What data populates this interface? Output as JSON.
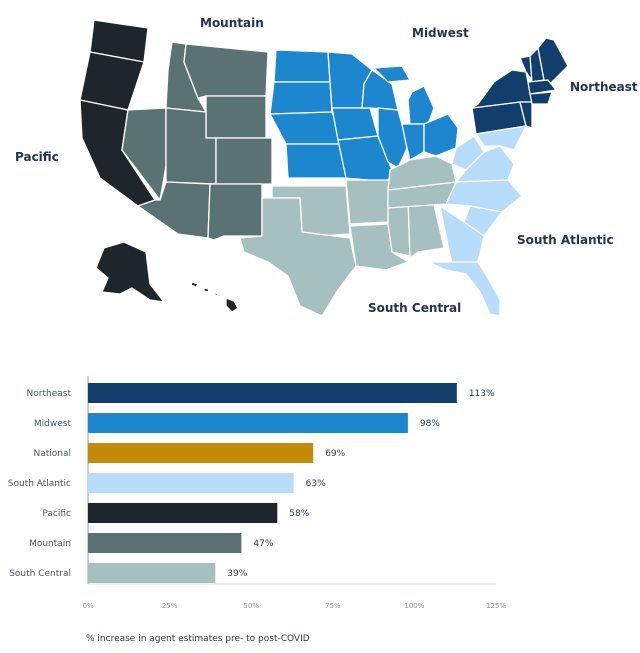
{
  "map": {
    "regions": [
      {
        "name": "Pacific",
        "color": "#1f262b"
      },
      {
        "name": "Mountain",
        "color": "#5a7372"
      },
      {
        "name": "Midwest",
        "color": "#1c86cf"
      },
      {
        "name": "Northeast",
        "color": "#123e6c"
      },
      {
        "name": "South Atlantic",
        "color": "#b8ddfa"
      },
      {
        "name": "South Central",
        "color": "#a5c0be"
      }
    ]
  },
  "chart_data": {
    "type": "bar",
    "orientation": "horizontal",
    "categories": [
      "Northeast",
      "Midwest",
      "National",
      "South Atlantic",
      "Pacific",
      "Mountain",
      "South Central"
    ],
    "values": [
      113,
      98,
      69,
      63,
      58,
      47,
      39
    ],
    "value_labels": [
      "113%",
      "98%",
      "69%",
      "63%",
      "58%",
      "47%",
      "39%"
    ],
    "colors": [
      "#123e6c",
      "#1c86cf",
      "#c48a0a",
      "#b8ddfa",
      "#1f262b",
      "#5a7372",
      "#a5c0be"
    ],
    "xlim": [
      0,
      125
    ],
    "xticks": [
      "0%",
      "25%",
      "50%",
      "75%",
      "100%",
      "125%"
    ],
    "grid": false
  },
  "footnote": "% increase in agent estimates pre- to post-COVID"
}
